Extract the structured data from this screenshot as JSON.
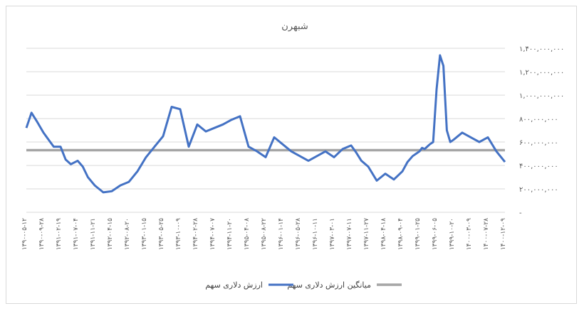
{
  "chart_data": {
    "type": "line",
    "title": "شبهرن",
    "xlabel": "",
    "ylabel": "",
    "ylim": [
      0,
      1400000000
    ],
    "y_ticks": [
      0,
      200000000,
      400000000,
      600000000,
      800000000,
      1000000000,
      1200000000,
      1400000000
    ],
    "y_tick_labels": [
      "-",
      "۲۰۰,۰۰۰,۰۰۰",
      "۴۰۰,۰۰۰,۰۰۰",
      "۶۰۰,۰۰۰,۰۰۰",
      "۸۰۰,۰۰۰,۰۰۰",
      "۱,۰۰۰,۰۰۰,۰۰۰",
      "۱,۲۰۰,۰۰۰,۰۰۰",
      "۱,۴۰۰,۰۰۰,۰۰۰"
    ],
    "y_axis_side": "right",
    "grid": true,
    "legend": "bottom",
    "categories": [
      "۱۳۹۰-۰۵-۱۲",
      "۱۳۹۰-۰۹-۲۸",
      "۱۳۹۱-۰۲-۱۹",
      "۱۳۹۱-۰۷-۰۴",
      "۱۳۹۱-۱۱-۲۱",
      "۱۳۹۲-۰۴-۱۵",
      "۱۳۹۲-۰۸-۲۰",
      "۱۳۹۳-۰۱-۱۵",
      "۱۳۹۳-۰۵-۲۵",
      "۱۳۹۳-۱۰-۰۹",
      "۱۳۹۴-۰۲-۲۸",
      "۱۳۹۴-۰۷-۰۷",
      "۱۳۹۴-۱۱-۲۰",
      "۱۳۹۵-۰۴-۰۸",
      "۱۳۹۵-۰۸-۲۲",
      "۱۳۹۶-۰۱-۱۴",
      "۱۳۹۶-۰۵-۲۸",
      "۱۳۹۶-۱۰-۱۱",
      "۱۳۹۷-۰۳-۰۱",
      "۱۳۹۷-۰۷-۱۱",
      "۱۳۹۷-۱۱-۲۷",
      "۱۳۹۸-۰۴-۱۸",
      "۱۳۹۸-۰۹-۰۴",
      "۱۳۹۹-۰۱-۲۵",
      "۱۳۹۹-۰۶-۰۵",
      "۱۳۹۹-۱۰-۲۰",
      "۱۴۰۰-۰۳-۰۹",
      "۱۴۰۰-۰۷-۲۸",
      "۱۴۰۰-۱۲-۰۹"
    ],
    "series": [
      {
        "name": "ارزش دلاری سهم",
        "color": "#4472c4",
        "x": [
          0,
          0.3,
          0.6,
          1,
          1.3,
          1.6,
          2,
          2.3,
          2.6,
          3,
          3.3,
          3.6,
          4,
          4.5,
          5,
          5.5,
          6,
          6.5,
          7,
          7.5,
          8,
          8.5,
          9,
          9.5,
          10,
          10.5,
          11,
          11.5,
          12,
          12.5,
          13,
          13.5,
          14,
          14.5,
          15,
          15.5,
          16,
          16.5,
          17,
          17.5,
          18,
          18.5,
          19,
          19.3,
          19.6,
          20,
          20.5,
          21,
          21.5,
          22,
          22.3,
          22.6,
          22.8,
          23,
          23.15,
          23.3,
          23.45,
          23.6,
          23.8,
          24,
          24.2,
          24.4,
          24.6,
          24.8,
          25,
          25.5,
          26,
          26.5,
          27,
          27.5,
          28
        ],
        "values": [
          720000000,
          850000000,
          780000000,
          680000000,
          620000000,
          560000000,
          560000000,
          450000000,
          410000000,
          440000000,
          390000000,
          300000000,
          230000000,
          170000000,
          180000000,
          230000000,
          260000000,
          350000000,
          470000000,
          560000000,
          650000000,
          900000000,
          880000000,
          560000000,
          750000000,
          690000000,
          720000000,
          750000000,
          790000000,
          820000000,
          560000000,
          520000000,
          470000000,
          640000000,
          580000000,
          520000000,
          480000000,
          440000000,
          480000000,
          520000000,
          470000000,
          540000000,
          570000000,
          510000000,
          440000000,
          390000000,
          270000000,
          330000000,
          280000000,
          350000000,
          430000000,
          480000000,
          500000000,
          520000000,
          550000000,
          540000000,
          560000000,
          580000000,
          600000000,
          1050000000,
          1340000000,
          1250000000,
          700000000,
          600000000,
          620000000,
          680000000,
          640000000,
          600000000,
          640000000,
          520000000,
          430000000
        ]
      },
      {
        "name": "میانگین ارزش دلاری سهم",
        "color": "#a5a5a5",
        "x": [
          0,
          28
        ],
        "values": [
          530000000,
          530000000
        ]
      }
    ]
  }
}
